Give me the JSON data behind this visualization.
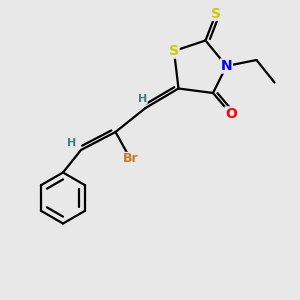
{
  "bg_color": "#e8e8e8",
  "atom_colors": {
    "S": "#cccc00",
    "N": "#0000ff",
    "O": "#ff0000",
    "Br": "#cc7722",
    "C": "#000000",
    "H": "#408080"
  },
  "bond_color": "#000000",
  "bond_width": 1.6
}
